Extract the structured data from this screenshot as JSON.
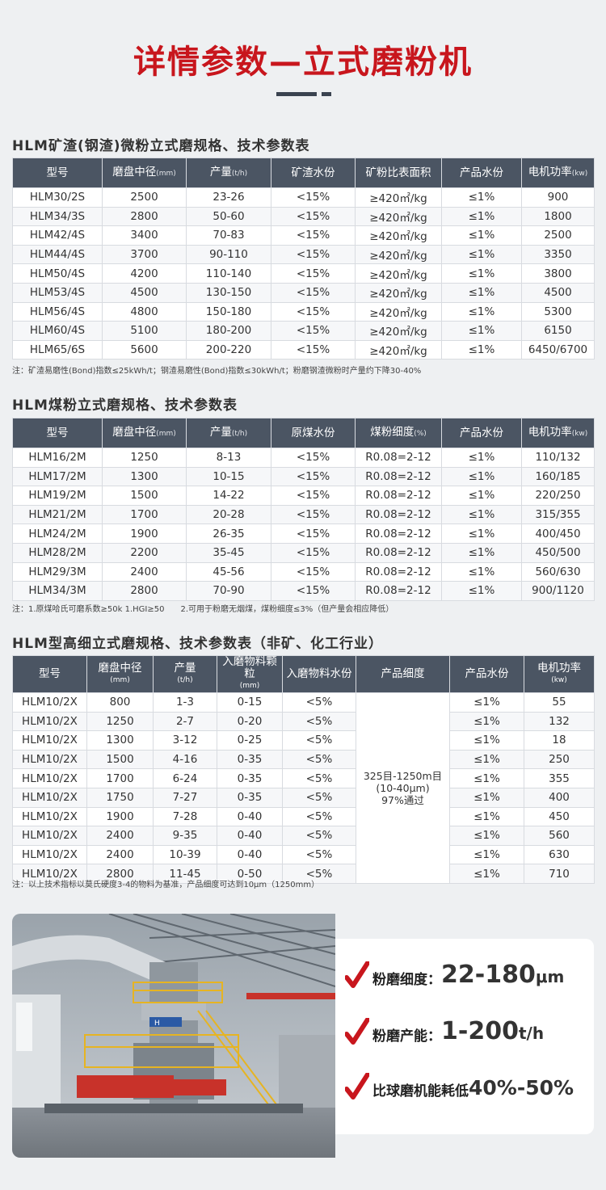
{
  "page": {
    "title": "详情参数—立式磨粉机"
  },
  "table1": {
    "heading": "HLM矿渣(钢渣)微粉立式磨规格、技术参数表",
    "headers": [
      {
        "label": "型号",
        "unit": ""
      },
      {
        "label": "磨盘中径",
        "unit": "(mm)"
      },
      {
        "label": "产量",
        "unit": "(t/h)"
      },
      {
        "label": "矿渣水份",
        "unit": ""
      },
      {
        "label": "矿粉比表面积",
        "unit": ""
      },
      {
        "label": "产品水份",
        "unit": ""
      },
      {
        "label": "电机功率",
        "unit": "(kw)"
      }
    ],
    "rows": [
      [
        "HLM30/2S",
        "2500",
        "23-26",
        "<15%",
        "≥420㎡/kg",
        "≤1%",
        "900"
      ],
      [
        "HLM34/3S",
        "2800",
        "50-60",
        "<15%",
        "≥420㎡/kg",
        "≤1%",
        "1800"
      ],
      [
        "HLM42/4S",
        "3400",
        "70-83",
        "<15%",
        "≥420㎡/kg",
        "≤1%",
        "2500"
      ],
      [
        "HLM44/4S",
        "3700",
        "90-110",
        "<15%",
        "≥420㎡/kg",
        "≤1%",
        "3350"
      ],
      [
        "HLM50/4S",
        "4200",
        "110-140",
        "<15%",
        "≥420㎡/kg",
        "≤1%",
        "3800"
      ],
      [
        "HLM53/4S",
        "4500",
        "130-150",
        "<15%",
        "≥420㎡/kg",
        "≤1%",
        "4500"
      ],
      [
        "HLM56/4S",
        "4800",
        "150-180",
        "<15%",
        "≥420㎡/kg",
        "≤1%",
        "5300"
      ],
      [
        "HLM60/4S",
        "5100",
        "180-200",
        "<15%",
        "≥420㎡/kg",
        "≤1%",
        "6150"
      ],
      [
        "HLM65/6S",
        "5600",
        "200-220",
        "<15%",
        "≥420㎡/kg",
        "≤1%",
        "6450/6700"
      ]
    ],
    "note": "注：矿渣易磨性(Bond)指数≤25kWh/t；钢渣易磨性(Bond)指数≤30kWh/t；粉磨钢渣微粉时产量约下降30-40%"
  },
  "table2": {
    "heading": "HLM煤粉立式磨规格、技术参数表",
    "headers": [
      {
        "label": "型号",
        "unit": ""
      },
      {
        "label": "磨盘中径",
        "unit": "(mm)"
      },
      {
        "label": "产量",
        "unit": "(t/h)"
      },
      {
        "label": "原煤水份",
        "unit": ""
      },
      {
        "label": "煤粉细度",
        "unit": "(%)"
      },
      {
        "label": "产品水份",
        "unit": ""
      },
      {
        "label": "电机功率",
        "unit": "(kw)"
      }
    ],
    "rows": [
      [
        "HLM16/2M",
        "1250",
        "8-13",
        "<15%",
        "R0.08=2-12",
        "≤1%",
        "110/132"
      ],
      [
        "HLM17/2M",
        "1300",
        "10-15",
        "<15%",
        "R0.08=2-12",
        "≤1%",
        "160/185"
      ],
      [
        "HLM19/2M",
        "1500",
        "14-22",
        "<15%",
        "R0.08=2-12",
        "≤1%",
        "220/250"
      ],
      [
        "HLM21/2M",
        "1700",
        "20-28",
        "<15%",
        "R0.08=2-12",
        "≤1%",
        "315/355"
      ],
      [
        "HLM24/2M",
        "1900",
        "26-35",
        "<15%",
        "R0.08=2-12",
        "≤1%",
        "400/450"
      ],
      [
        "HLM28/2M",
        "2200",
        "35-45",
        "<15%",
        "R0.08=2-12",
        "≤1%",
        "450/500"
      ],
      [
        "HLM29/3M",
        "2400",
        "45-56",
        "<15%",
        "R0.08=2-12",
        "≤1%",
        "560/630"
      ],
      [
        "HLM34/3M",
        "2800",
        "70-90",
        "<15%",
        "R0.08=2-12",
        "≤1%",
        "900/1120"
      ]
    ],
    "note": "注：1.原煤哈氏可磨系数≥50k 1.HGI≥50　　2.可用于粉磨无烟煤，煤粉细度≤3%（但产量会相应降低）"
  },
  "table3": {
    "heading": "HLM型高细立式磨规格、技术参数表（非矿、化工行业）",
    "headers": [
      {
        "label": "型号",
        "unit": ""
      },
      {
        "label": "磨盘中径",
        "unit": "(mm)"
      },
      {
        "label": "产量",
        "unit": "(t/h)"
      },
      {
        "label": "入磨物料颗粒",
        "unit": "(mm)"
      },
      {
        "label": "入磨物料水份",
        "unit": ""
      },
      {
        "label": "产品细度",
        "unit": ""
      },
      {
        "label": "产品水份",
        "unit": ""
      },
      {
        "label": "电机功率",
        "unit": "(kw)"
      }
    ],
    "rows": [
      [
        "HLM10/2X",
        "800",
        "1-3",
        "0-15",
        "<5%",
        "≤1%",
        "55"
      ],
      [
        "HLM10/2X",
        "1250",
        "2-7",
        "0-20",
        "<5%",
        "≤1%",
        "132"
      ],
      [
        "HLM10/2X",
        "1300",
        "3-12",
        "0-25",
        "<5%",
        "≤1%",
        "18"
      ],
      [
        "HLM10/2X",
        "1500",
        "4-16",
        "0-35",
        "<5%",
        "≤1%",
        "250"
      ],
      [
        "HLM10/2X",
        "1700",
        "6-24",
        "0-35",
        "<5%",
        "≤1%",
        "355"
      ],
      [
        "HLM10/2X",
        "1750",
        "7-27",
        "0-35",
        "<5%",
        "≤1%",
        "400"
      ],
      [
        "HLM10/2X",
        "1900",
        "7-28",
        "0-40",
        "<5%",
        "≤1%",
        "450"
      ],
      [
        "HLM10/2X",
        "2400",
        "9-35",
        "0-40",
        "<5%",
        "≤1%",
        "560"
      ],
      [
        "HLM10/2X",
        "2400",
        "10-39",
        "0-40",
        "<5%",
        "≤1%",
        "630"
      ],
      [
        "HLM10/2X",
        "2800",
        "11-45",
        "0-50",
        "<5%",
        "≤1%",
        "710"
      ]
    ],
    "merged_fineness": [
      "325目-1250m目",
      "(10-40μm)",
      "97%通过"
    ],
    "note": "注：以上技术指标以莫氏硬度3-4的物料为基准，产品细度可达到10μm（1250mm）"
  },
  "features": {
    "photo_logo": "H",
    "items": [
      {
        "label": "粉磨细度：",
        "value": "22-180",
        "unit": "μm"
      },
      {
        "label": "粉磨产能：",
        "value": "1-200",
        "unit": "t/h"
      },
      {
        "label": "比球磨机能耗低",
        "value": "40%-50%",
        "unit": ""
      }
    ]
  },
  "colors": {
    "title_red": "#c8161d",
    "header_gray": "#4b5563",
    "check_red": "#c8161d",
    "background": "#eef0f2"
  }
}
